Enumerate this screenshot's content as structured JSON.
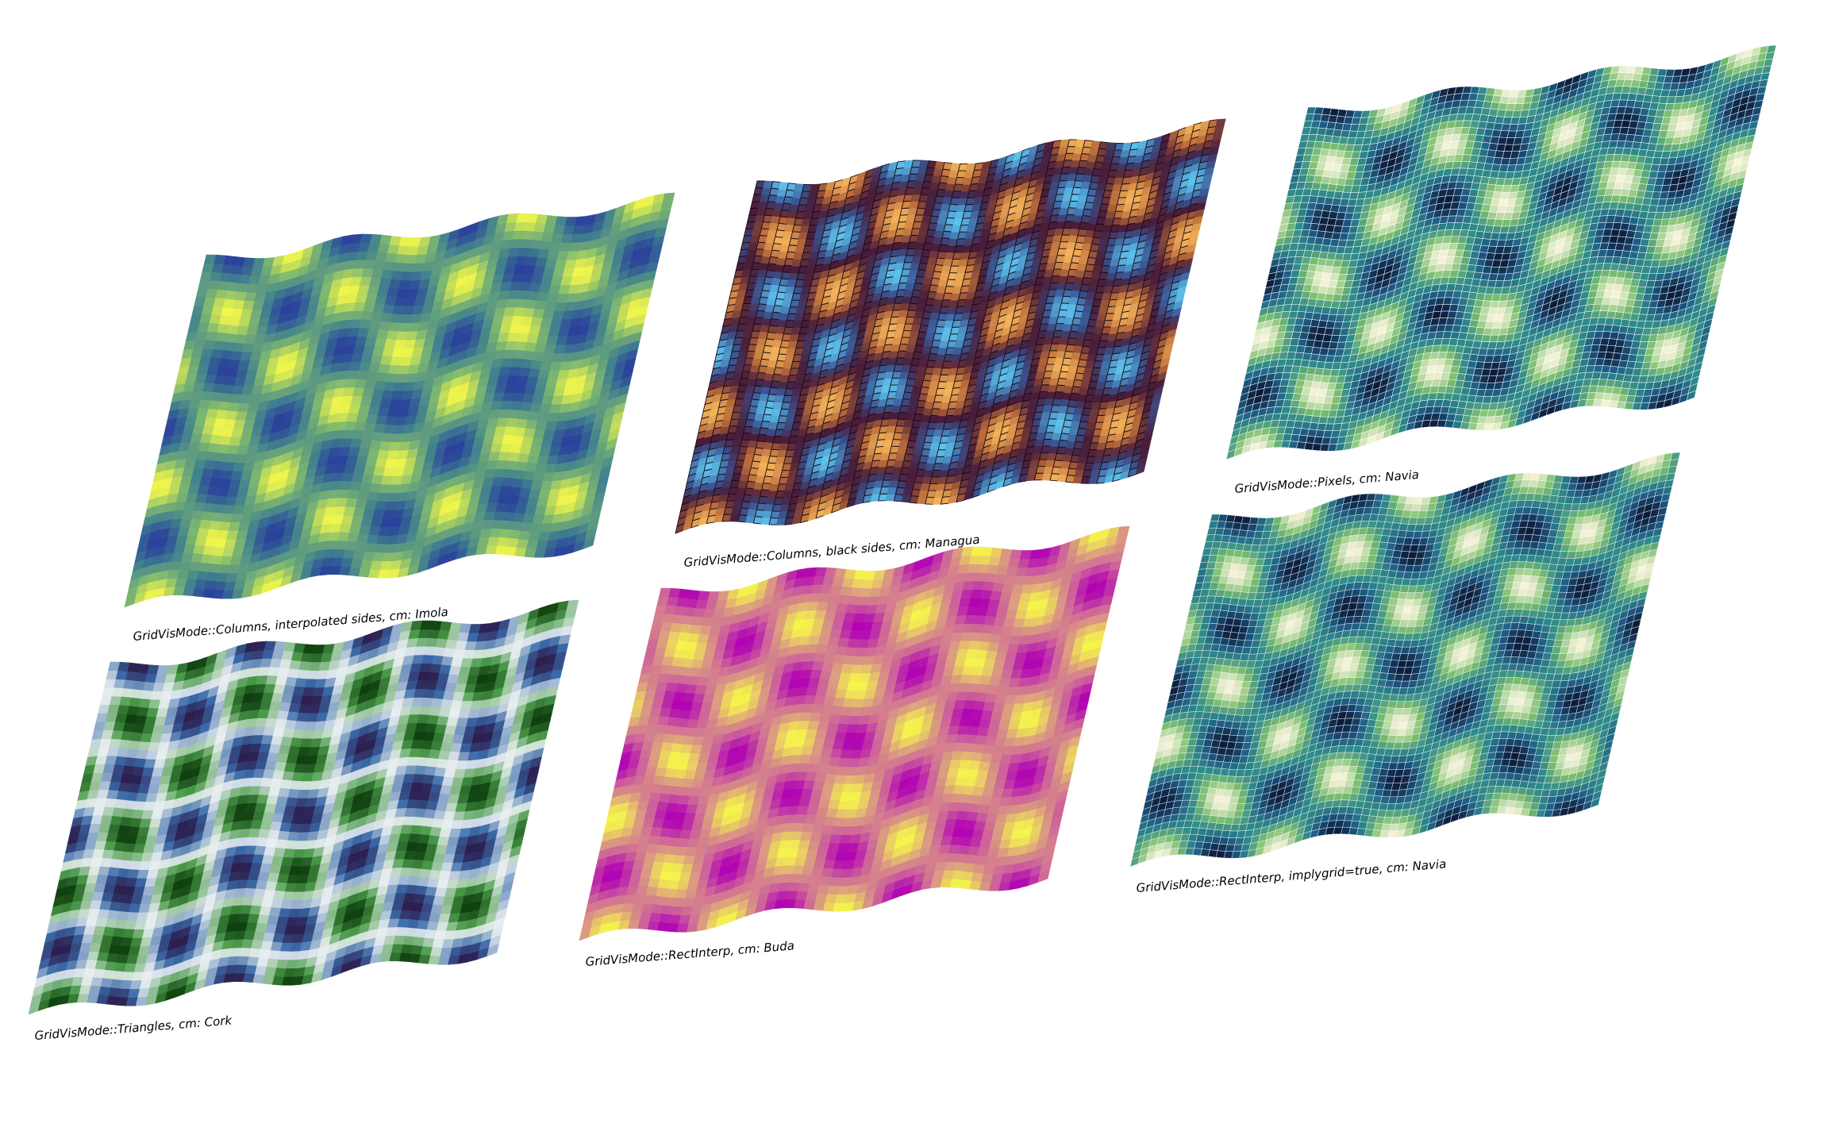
{
  "panels": [
    {
      "id": "columns-interpolated",
      "caption": "GridVisMode::Columns, interpolated sides, cm: Imola",
      "colormap": "Imola",
      "colors": [
        "#2a3f9c",
        "#3f7f8f",
        "#7fb870",
        "#f5f84a"
      ],
      "style": "smooth"
    },
    {
      "id": "columns-black",
      "caption": "GridVisMode::Columns, black sides, cm: Managua",
      "colormap": "Managua",
      "colors": [
        "#5dc3ee",
        "#3a5a98",
        "#4a1d3a",
        "#b86a3a",
        "#f4b45a"
      ],
      "style": "columns"
    },
    {
      "id": "pixels",
      "caption": "GridVisMode::Pixels, cm: Navia",
      "colormap": "Navia",
      "colors": [
        "#0b1b3a",
        "#1d5a84",
        "#2f8a8a",
        "#7cbf6e",
        "#f8f4da"
      ],
      "style": "pixels"
    },
    {
      "id": "triangles",
      "caption": "GridVisMode::Triangles, cm: Cork",
      "colormap": "Cork",
      "colors": [
        "#2c1a4a",
        "#3a6aa8",
        "#e8eef0",
        "#4a9a4a",
        "#0c3a0c"
      ],
      "style": "smooth"
    },
    {
      "id": "rectinterp",
      "caption": "GridVisMode::RectInterp, cm: Buda",
      "colormap": "Buda",
      "colors": [
        "#b000b4",
        "#cc5f9c",
        "#dca07e",
        "#f6f84a"
      ],
      "style": "smooth"
    },
    {
      "id": "rectinterp-implygrid",
      "caption": "GridVisMode::RectInterp, implygrid=true, cm: Navia",
      "colormap": "Navia",
      "colors": [
        "#0b1b3a",
        "#1d5a84",
        "#2f8a8a",
        "#7cbf6e",
        "#f8f4da"
      ],
      "style": "grid"
    }
  ]
}
